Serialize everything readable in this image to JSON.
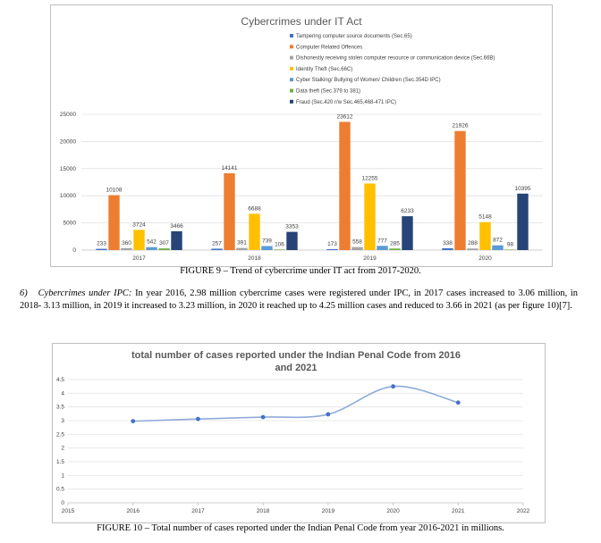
{
  "figure9": {
    "caption": "FIGURE 9 – Trend of cybercrime under IT act from 2017-2020.",
    "chart_data": {
      "type": "bar",
      "title": "Cybercrimes under IT Act",
      "categories": [
        "2017",
        "2018",
        "2019",
        "2020"
      ],
      "ylim": [
        0,
        25000
      ],
      "yticks": [
        "0",
        "5000",
        "10000",
        "15000",
        "20000",
        "25000"
      ],
      "grid": true,
      "legend": "top-right",
      "series": [
        {
          "name": "Tampering computer source documents (Sec.65)",
          "color": "#4472c4",
          "values": [
            233,
            257,
            173,
            338
          ]
        },
        {
          "name": "Computer Related Offences",
          "color": "#ed7d31",
          "values": [
            10108,
            14141,
            23612,
            21926
          ]
        },
        {
          "name": "Dishonestly receiving stolen computer resource or communication device (Sec.66B)",
          "color": "#a5a5a5",
          "values": [
            360,
            391,
            558,
            288
          ]
        },
        {
          "name": "Identity Theft (Sec.66C)",
          "color": "#ffc000",
          "values": [
            3724,
            6688,
            12255,
            5148
          ]
        },
        {
          "name": "Cyber Stalking/ Bullying of Women/ Children (Sec.354D IPC)",
          "color": "#5b9bd5",
          "values": [
            542,
            739,
            777,
            872
          ]
        },
        {
          "name": "Data theft (Sec.379 to 381)",
          "color": "#70ad47",
          "values": [
            307,
            106,
            285,
            98
          ]
        },
        {
          "name": "Fraud (Sec.420 r/w Sec.465,468-471 IPC)",
          "color": "#264478",
          "values": [
            3466,
            3353,
            6233,
            10395
          ]
        }
      ]
    }
  },
  "paragraph": {
    "number": "6)",
    "lead": "Cybercrimes under IPC:",
    "text": " In year 2016, 2.98 million cybercrime cases were registered under IPC, in 2017 cases increased to 3.06 million, in 2018- 3.13 million, in 2019 it increased to 3.23 million, in 2020 it reached up to 4.25 million cases and reduced to 3.66 in 2021 (as per figure 10)[7]."
  },
  "figure10": {
    "caption": "FIGURE 10 – Total number of cases reported under the Indian Penal Code from year 2016-2021 in millions.",
    "chart_data": {
      "type": "line",
      "title_lines": [
        "total number of cases reported under the Indian Penal Code from 2016",
        "and 2021"
      ],
      "x": [
        2016,
        2017,
        2018,
        2019,
        2020,
        2021
      ],
      "series": [
        {
          "color": "#4472c4",
          "values": [
            2.98,
            3.06,
            3.13,
            3.23,
            4.25,
            3.66
          ]
        }
      ],
      "xlim": [
        2015,
        2022
      ],
      "xticks": [
        "2015",
        "2016",
        "2017",
        "2018",
        "2019",
        "2020",
        "2021",
        "2022"
      ],
      "ylim": [
        0,
        4.5
      ],
      "yticks": [
        "0",
        "0.5",
        "1",
        "1.5",
        "2",
        "2.5",
        "3",
        "3.5",
        "4",
        "4.5"
      ],
      "grid": true
    }
  }
}
